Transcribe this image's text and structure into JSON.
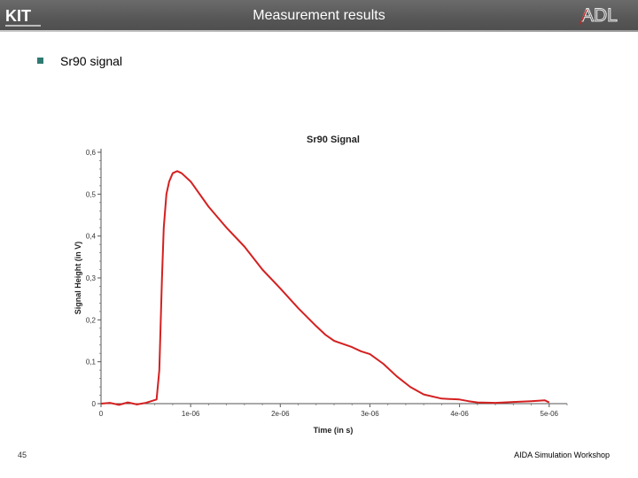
{
  "header": {
    "kit_logo": "KIT",
    "title": "Measurement results",
    "adl_logo": "ADL"
  },
  "bullet": {
    "text": "Sr90 signal"
  },
  "footer": {
    "page_number": "45",
    "workshop": "AIDA Simulation Workshop"
  },
  "colors": {
    "header_bg": "#5a5a5a",
    "bullet": "#2f7a72",
    "signal": "#d42020"
  },
  "chart_data": {
    "type": "line",
    "title": "Sr90 Signal",
    "xlabel": "Time (in s)",
    "ylabel": "Signal Height (in V)",
    "xlim": [
      0,
      5.2e-06
    ],
    "ylim": [
      0,
      0.6
    ],
    "xticks": [
      0,
      1e-06,
      2e-06,
      3e-06,
      4e-06,
      5e-06
    ],
    "xtick_labels": [
      "0",
      "1e-06",
      "2e-06",
      "3e-06",
      "4e-06",
      "5e-06"
    ],
    "yticks": [
      0,
      0.1,
      0.2,
      0.3,
      0.4,
      0.5,
      0.6
    ],
    "ytick_labels": [
      "0",
      "0,1",
      "0,2",
      "0,3",
      "0,4",
      "0,5",
      "0,6"
    ],
    "grid": false,
    "series": [
      {
        "color": "#d42020",
        "x": [
          0,
          1e-07,
          2e-07,
          3e-07,
          4e-07,
          5e-07,
          6.2e-07,
          6.5e-07,
          6.8e-07,
          7e-07,
          7.3e-07,
          7.6e-07,
          8e-07,
          8.5e-07,
          9e-07,
          1e-06,
          1.2e-06,
          1.4e-06,
          1.6e-06,
          1.8e-06,
          2e-06,
          2.2e-06,
          2.4e-06,
          2.5e-06,
          2.6e-06,
          2.8e-06,
          2.9e-06,
          3e-06,
          3.15e-06,
          3.3e-06,
          3.45e-06,
          3.6e-06,
          3.8e-06,
          4e-06,
          4.1e-06,
          4.2e-06,
          4.4e-06,
          4.6e-06,
          4.8e-06,
          4.95e-06,
          5e-06
        ],
        "y": [
          0.0,
          0.002,
          -0.003,
          0.003,
          -0.002,
          0.002,
          0.01,
          0.08,
          0.3,
          0.42,
          0.5,
          0.53,
          0.55,
          0.555,
          0.55,
          0.53,
          0.47,
          0.42,
          0.375,
          0.32,
          0.275,
          0.228,
          0.185,
          0.165,
          0.15,
          0.135,
          0.125,
          0.118,
          0.095,
          0.065,
          0.04,
          0.022,
          0.012,
          0.01,
          0.006,
          0.003,
          0.002,
          0.004,
          0.006,
          0.008,
          0.003
        ]
      }
    ]
  }
}
